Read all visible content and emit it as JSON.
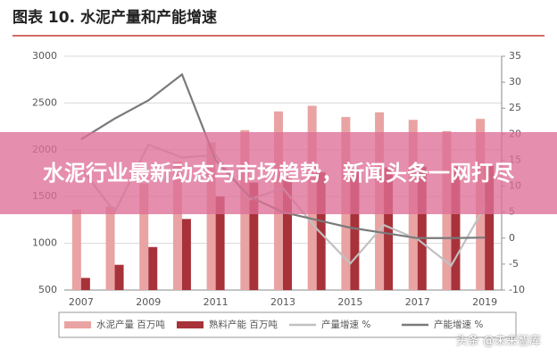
{
  "chart_data": {
    "type": "bar",
    "title": "图表 10. 水泥产量和产能增速",
    "categories": [
      "2007",
      null,
      "2009",
      null,
      "2011",
      null,
      "2013",
      null,
      "2015",
      null,
      "2017",
      null,
      "2019"
    ],
    "series": [
      {
        "name": "水泥产量 百万吨",
        "type": "bar",
        "color": "#e9a3a3",
        "values": [
          1360,
          1390,
          1640,
          1870,
          2080,
          2210,
          2410,
          2470,
          2350,
          2400,
          2320,
          2200,
          2330
        ]
      },
      {
        "name": "熟料产能 百万吨",
        "type": "bar",
        "color": "#a8323a",
        "values": [
          630,
          770,
          960,
          1260,
          1500,
          1650,
          1700,
          1760,
          1800,
          1810,
          1820,
          1820,
          1830
        ]
      },
      {
        "name": "产量增速 %",
        "type": "line",
        "axis": "y2",
        "color": "#c0c0c0",
        "values": [
          13.5,
          5,
          18,
          15.5,
          16,
          7.4,
          9.6,
          1.8,
          -4.9,
          2.5,
          -0.2,
          -5.3,
          6.1
        ]
      },
      {
        "name": "产能增速 %",
        "type": "line",
        "axis": "y2",
        "color": "#7a7a7a",
        "values": [
          19,
          23,
          26.5,
          31.5,
          15,
          8,
          5,
          3.5,
          2,
          1,
          0,
          0,
          0.1
        ]
      }
    ],
    "ylim": [
      500,
      3000
    ],
    "yticks": [
      500,
      1000,
      1500,
      2000,
      2500,
      3000
    ],
    "y2lim": [
      -10,
      35
    ],
    "y2ticks": [
      -10,
      -5,
      0,
      5,
      10,
      15,
      20,
      25,
      30,
      35
    ],
    "grid": true
  },
  "banner": "水泥行业最新动态与市场趋势，新闻头条一网打尽",
  "watermark": "头条 @未来智库"
}
